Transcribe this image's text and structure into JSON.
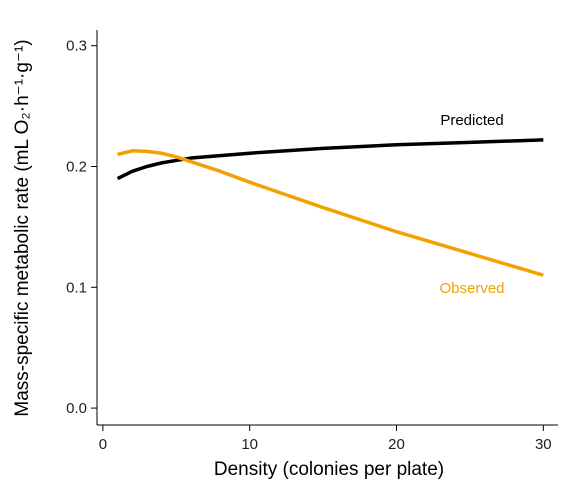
{
  "chart_data": {
    "type": "line",
    "x_label": "Density (colonies per plate)",
    "y_label": "Mass-specific metabolic rate (mL O₂·h⁻¹·g⁻¹)",
    "x": [
      1,
      2,
      3,
      4,
      5,
      6,
      8,
      10,
      15,
      20,
      25,
      30
    ],
    "series": [
      {
        "name": "Predicted",
        "color": "#000000",
        "values": [
          0.19,
          0.196,
          0.2,
          0.203,
          0.205,
          0.207,
          0.209,
          0.211,
          0.215,
          0.218,
          0.22,
          0.222
        ]
      },
      {
        "name": "Observed",
        "color": "#f2a100",
        "values": [
          0.21,
          0.213,
          0.2125,
          0.211,
          0.208,
          0.204,
          0.196,
          0.187,
          0.166,
          0.146,
          0.128,
          0.11
        ]
      }
    ],
    "xlim": [
      -0.4,
      31
    ],
    "ylim": [
      -0.014,
      0.313
    ],
    "xticks": [
      0,
      10,
      20,
      30
    ],
    "yticks": [
      {
        "value": 0,
        "label": "0.0"
      },
      0.1,
      0.2,
      0.3
    ]
  }
}
